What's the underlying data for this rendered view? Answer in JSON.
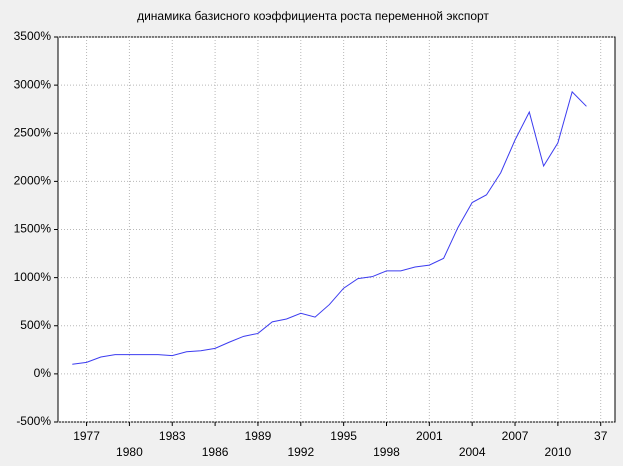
{
  "chart_data": {
    "type": "line",
    "title": "динамика базисного коэффициента роста переменной экспорт",
    "x": [
      0,
      1,
      2,
      3,
      4,
      5,
      6,
      7,
      8,
      9,
      10,
      11,
      12,
      13,
      14,
      15,
      16,
      17,
      18,
      19,
      20,
      21,
      22,
      23,
      24,
      25,
      26,
      27,
      28,
      29,
      30,
      31,
      32,
      33,
      34,
      35,
      36
    ],
    "series": [
      {
        "name": "экспорт",
        "color": "#3c3cf0",
        "values": [
          100,
          120,
          175,
          200,
          200,
          200,
          200,
          190,
          230,
          240,
          265,
          330,
          390,
          420,
          540,
          570,
          630,
          590,
          720,
          890,
          990,
          1010,
          1070,
          1070,
          1110,
          1130,
          1200,
          1520,
          1780,
          1860,
          2090,
          2430,
          2720,
          2160,
          2400,
          2930,
          2780
        ]
      }
    ],
    "xlim": [
      -1,
      38
    ],
    "xticks": [
      {
        "value": 1,
        "label": "1977"
      },
      {
        "value": 4,
        "label": "1980"
      },
      {
        "value": 7,
        "label": "1983"
      },
      {
        "value": 10,
        "label": "1986"
      },
      {
        "value": 13,
        "label": "1989"
      },
      {
        "value": 16,
        "label": "1992"
      },
      {
        "value": 19,
        "label": "1995"
      },
      {
        "value": 22,
        "label": "1998"
      },
      {
        "value": 25,
        "label": "2001"
      },
      {
        "value": 28,
        "label": "2004"
      },
      {
        "value": 31,
        "label": "2007"
      },
      {
        "value": 34,
        "label": "2010"
      },
      37
    ],
    "ylim": [
      -500,
      3500
    ],
    "yticks": [
      {
        "value": -500,
        "label": "-500%"
      },
      {
        "value": 0,
        "label": "0%"
      },
      {
        "value": 500,
        "label": "500%"
      },
      {
        "value": 1000,
        "label": "1000%"
      },
      {
        "value": 1500,
        "label": "1500%"
      },
      {
        "value": 2000,
        "label": "2000%"
      },
      {
        "value": 2500,
        "label": "2500%"
      },
      {
        "value": 3000,
        "label": "3000%"
      },
      {
        "value": 3500,
        "label": "3500%"
      }
    ],
    "grid": true
  }
}
